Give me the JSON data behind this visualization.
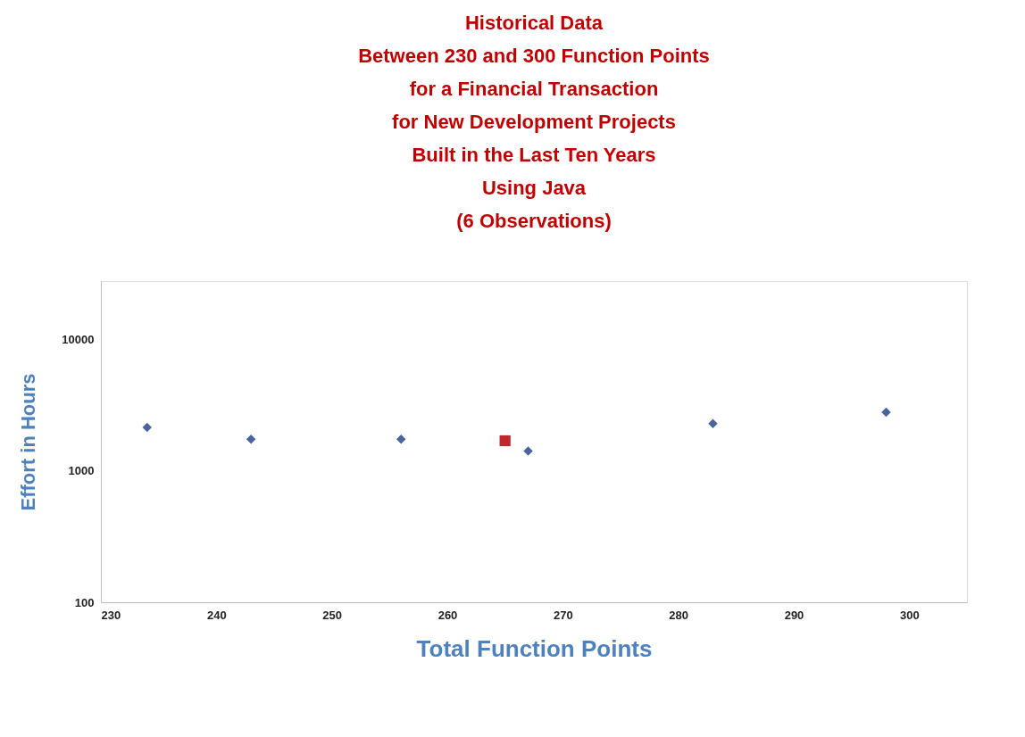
{
  "chart_data": {
    "type": "scatter",
    "title": [
      "Historical Data",
      "Between 230 and 300 Function Points",
      "for a Financial Transaction",
      "for New Development Projects",
      "Built in the Last Ten Years",
      "Using Java",
      "(6 Observations)"
    ],
    "xlabel": "Total Function Points",
    "ylabel": "Effort  in Hours",
    "series": [
      {
        "color": "#4a64a0",
        "marker": "diamond",
        "x": [
          234,
          243,
          256,
          267,
          283,
          298
        ],
        "values": [
          2150,
          1750,
          1750,
          1420,
          2300,
          2800
        ]
      },
      {
        "color": "#c0282d",
        "marker": "square",
        "x": [
          265
        ],
        "values": [
          1700
        ]
      }
    ],
    "xlim": [
      230,
      305
    ],
    "xticks": [
      230,
      240,
      250,
      260,
      270,
      280,
      290,
      300
    ],
    "ylim": [
      100,
      28000
    ],
    "yticks": [
      100,
      1000,
      10000
    ],
    "log": "y",
    "grid": false
  }
}
